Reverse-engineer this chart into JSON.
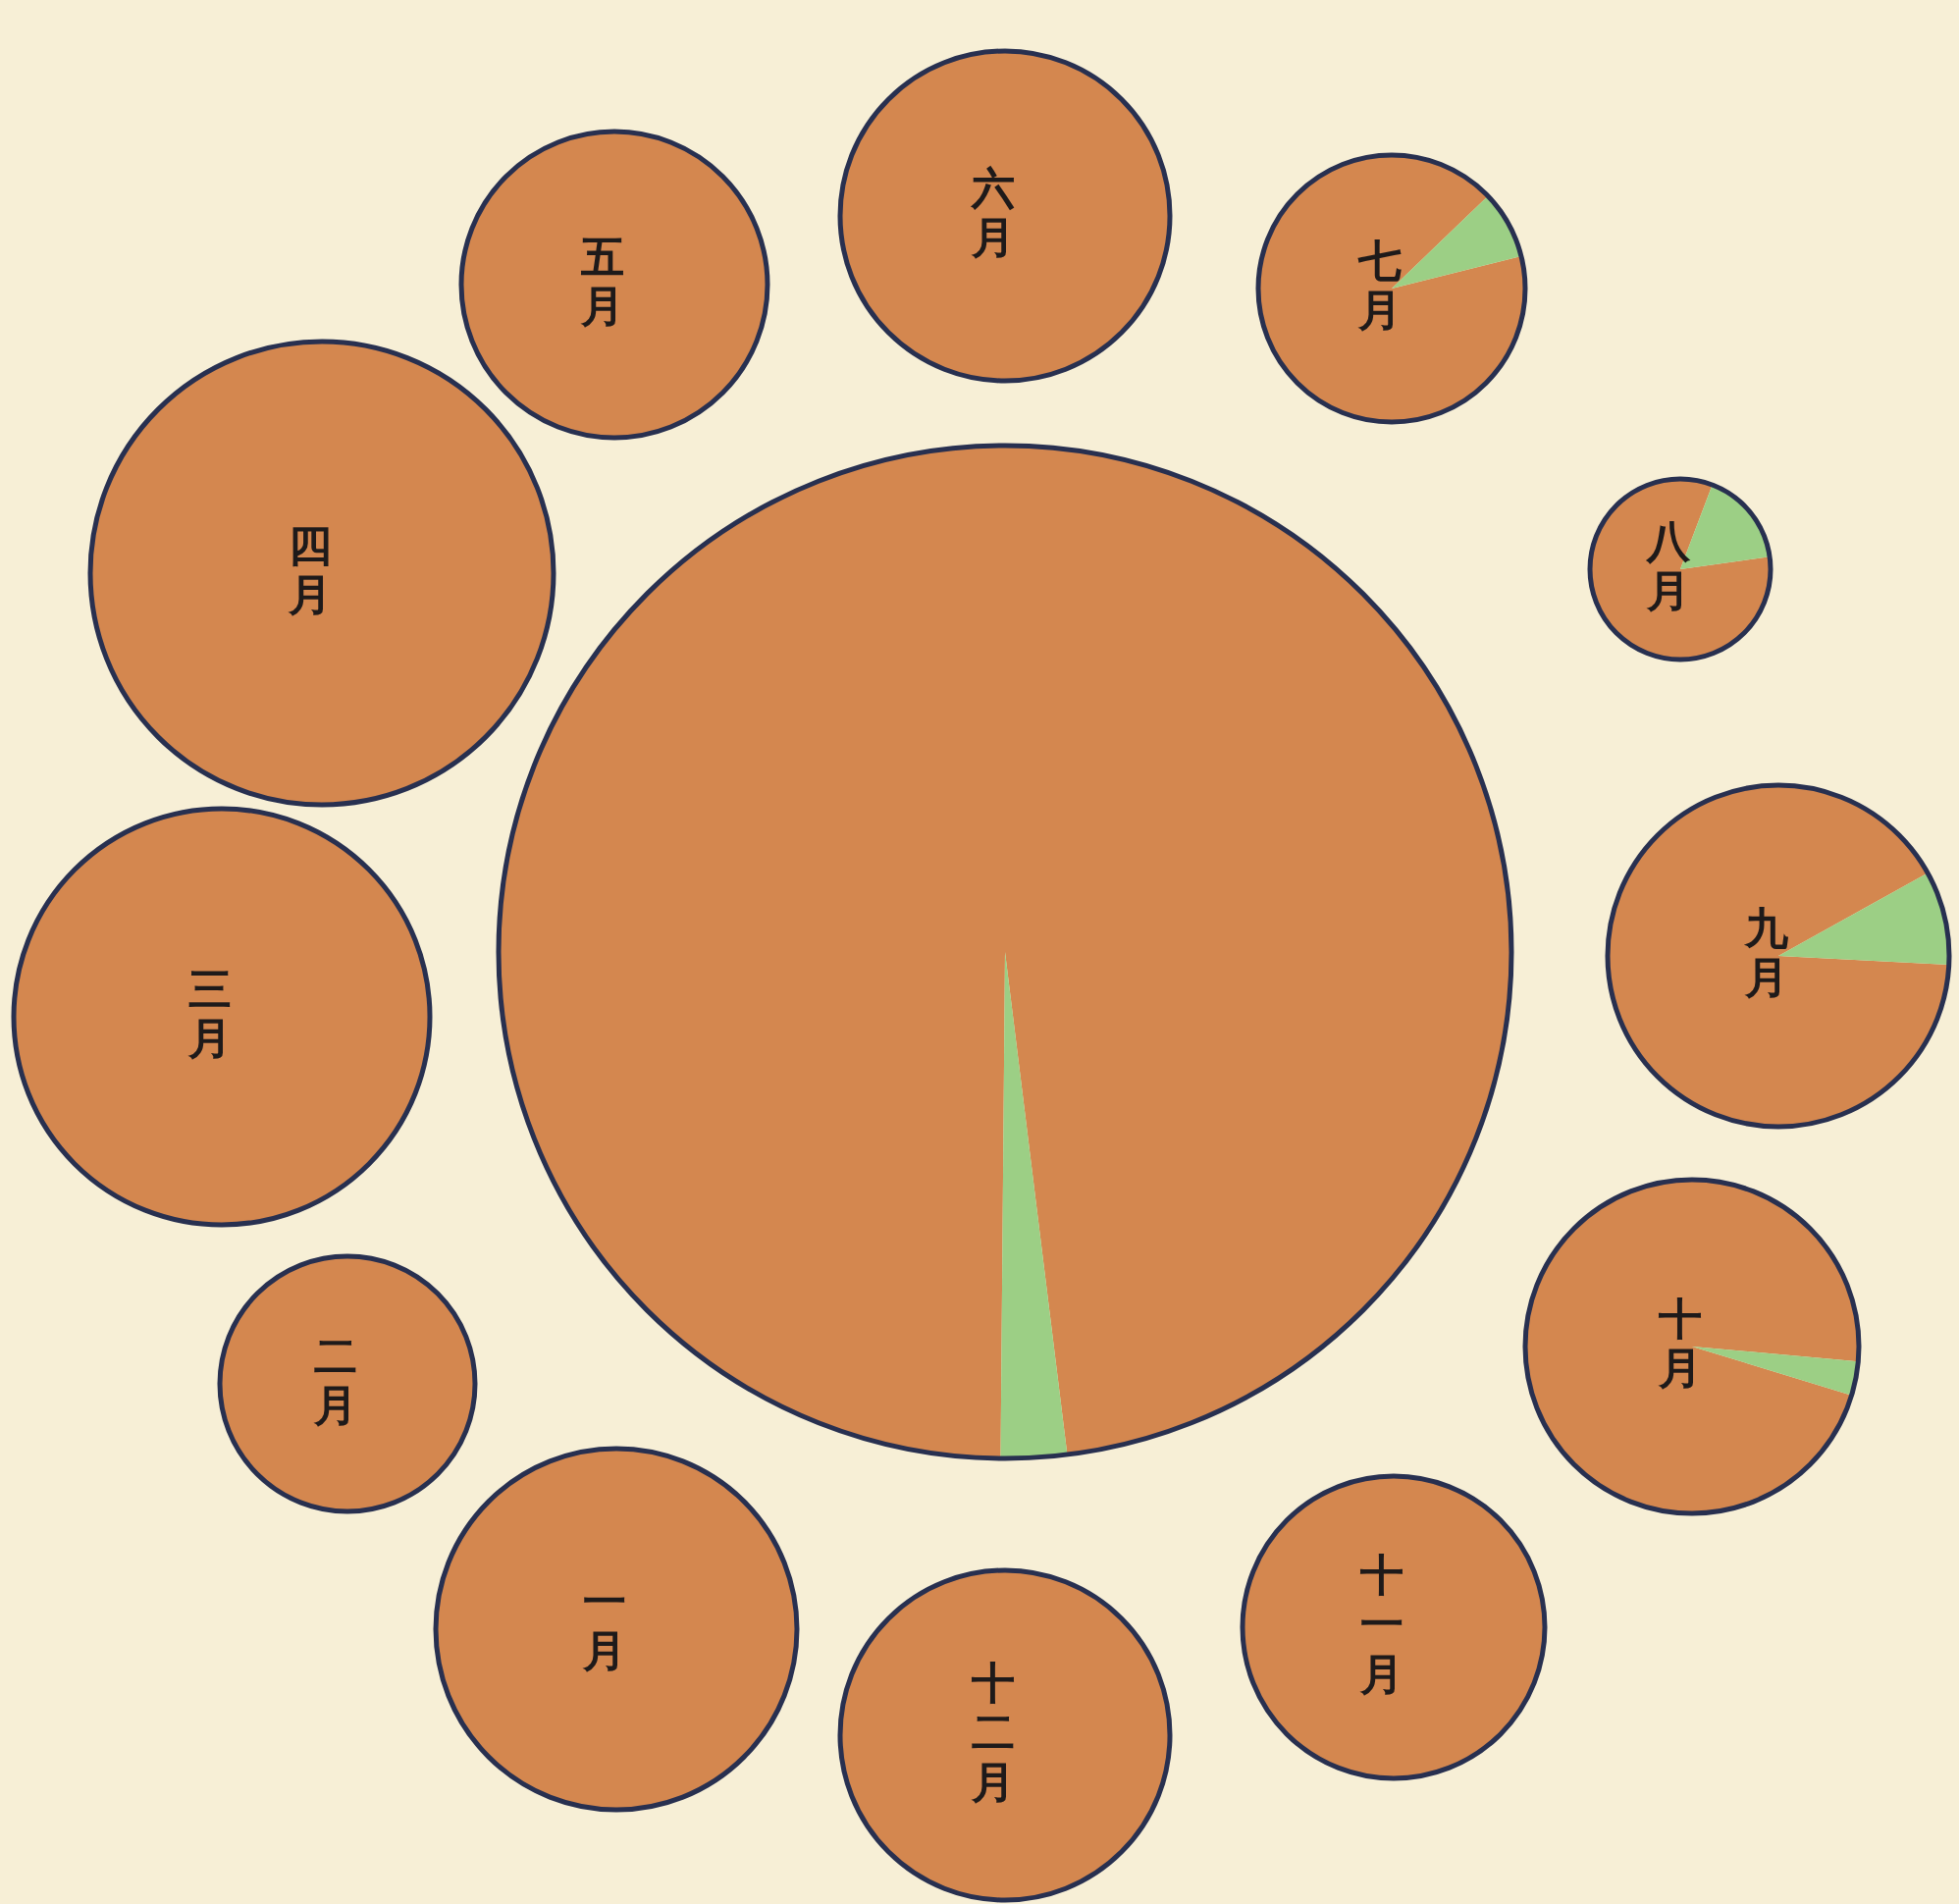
{
  "chart_data": [
    {
      "type": "pie",
      "categories": [
        null,
        null
      ],
      "values": [
        97.9,
        2.1
      ],
      "colors": [
        "#d4874f",
        "#9ccf85"
      ]
    },
    {
      "type": "pie",
      "title": "一月",
      "categories": [
        null,
        null
      ],
      "values": [
        100,
        0
      ],
      "colors": [
        "#d4874f",
        "#9ccf85"
      ]
    },
    {
      "type": "pie",
      "title": "二月",
      "categories": [
        null,
        null
      ],
      "values": [
        100,
        0
      ],
      "colors": [
        "#d4874f",
        "#9ccf85"
      ]
    },
    {
      "type": "pie",
      "title": "三月",
      "categories": [
        null,
        null
      ],
      "values": [
        100,
        0
      ],
      "colors": [
        "#d4874f",
        "#9ccf85"
      ]
    },
    {
      "type": "pie",
      "title": "四月",
      "categories": [
        null,
        null
      ],
      "values": [
        100,
        0
      ],
      "colors": [
        "#d4874f",
        "#9ccf85"
      ]
    },
    {
      "type": "pie",
      "title": "五月",
      "categories": [
        null,
        null
      ],
      "values": [
        100,
        0
      ],
      "colors": [
        "#d4874f",
        "#9ccf85"
      ]
    },
    {
      "type": "pie",
      "title": "六月",
      "categories": [
        null,
        null
      ],
      "values": [
        100,
        0
      ],
      "colors": [
        "#d4874f",
        "#9ccf85"
      ]
    },
    {
      "type": "pie",
      "title": "七月",
      "categories": [
        null,
        null
      ],
      "values": [
        91.7,
        8.3
      ],
      "colors": [
        "#d4874f",
        "#9ccf85"
      ]
    },
    {
      "type": "pie",
      "title": "八月",
      "categories": [
        null,
        null
      ],
      "values": [
        83,
        17
      ],
      "colors": [
        "#d4874f",
        "#9ccf85"
      ]
    },
    {
      "type": "pie",
      "title": "九月",
      "categories": [
        null,
        null
      ],
      "values": [
        91.1,
        8.9
      ],
      "colors": [
        "#d4874f",
        "#9ccf85"
      ]
    },
    {
      "type": "pie",
      "title": "十月",
      "categories": [
        null,
        null
      ],
      "values": [
        96.7,
        3.3
      ],
      "colors": [
        "#d4874f",
        "#9ccf85"
      ]
    },
    {
      "type": "pie",
      "title": "十一月",
      "categories": [
        null,
        null
      ],
      "values": [
        100,
        0
      ],
      "colors": [
        "#d4874f",
        "#9ccf85"
      ]
    },
    {
      "type": "pie",
      "title": "十二月",
      "categories": [
        null,
        null
      ],
      "values": [
        100,
        0
      ],
      "colors": [
        "#d4874f",
        "#9ccf85"
      ]
    }
  ]
}
